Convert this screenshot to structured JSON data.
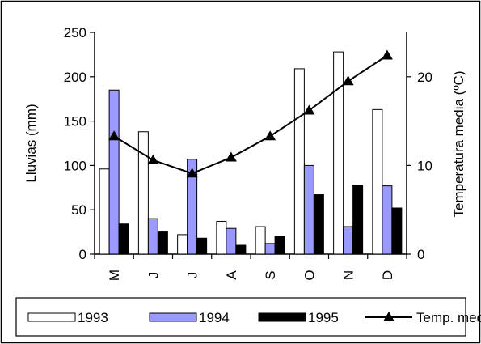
{
  "chart_data": {
    "type": "bar",
    "categories": [
      "M",
      "J",
      "J",
      "A",
      "S",
      "O",
      "N",
      "D"
    ],
    "series": [
      {
        "name": "1993",
        "type": "bar",
        "axis": "left",
        "color": "#ffffff",
        "values": [
          96,
          138,
          22,
          37,
          31,
          209,
          228,
          163
        ]
      },
      {
        "name": "1994",
        "type": "bar",
        "axis": "left",
        "color": "#9999ff",
        "values": [
          185,
          40,
          107,
          29,
          12,
          100,
          31,
          77
        ]
      },
      {
        "name": "1995",
        "type": "bar",
        "axis": "left",
        "color": "#000000",
        "values": [
          34,
          25,
          18,
          10,
          20,
          67,
          78,
          52
        ]
      },
      {
        "name": "Temp. med.",
        "type": "line",
        "axis": "right",
        "color": "#000000",
        "marker": "triangle",
        "values": [
          13.3,
          10.6,
          9.1,
          10.9,
          13.3,
          16.2,
          19.5,
          22.4
        ]
      }
    ],
    "ylabel": "Lluvias (mm)",
    "ylim": [
      0,
      250
    ],
    "yticks": [
      0,
      50,
      100,
      150,
      200,
      250
    ],
    "y2label": "Temperatura media (ºC)",
    "y2lim": [
      0,
      25
    ],
    "y2ticks": [
      0,
      10,
      20
    ],
    "grid": false,
    "legend_placement": "bottom"
  }
}
